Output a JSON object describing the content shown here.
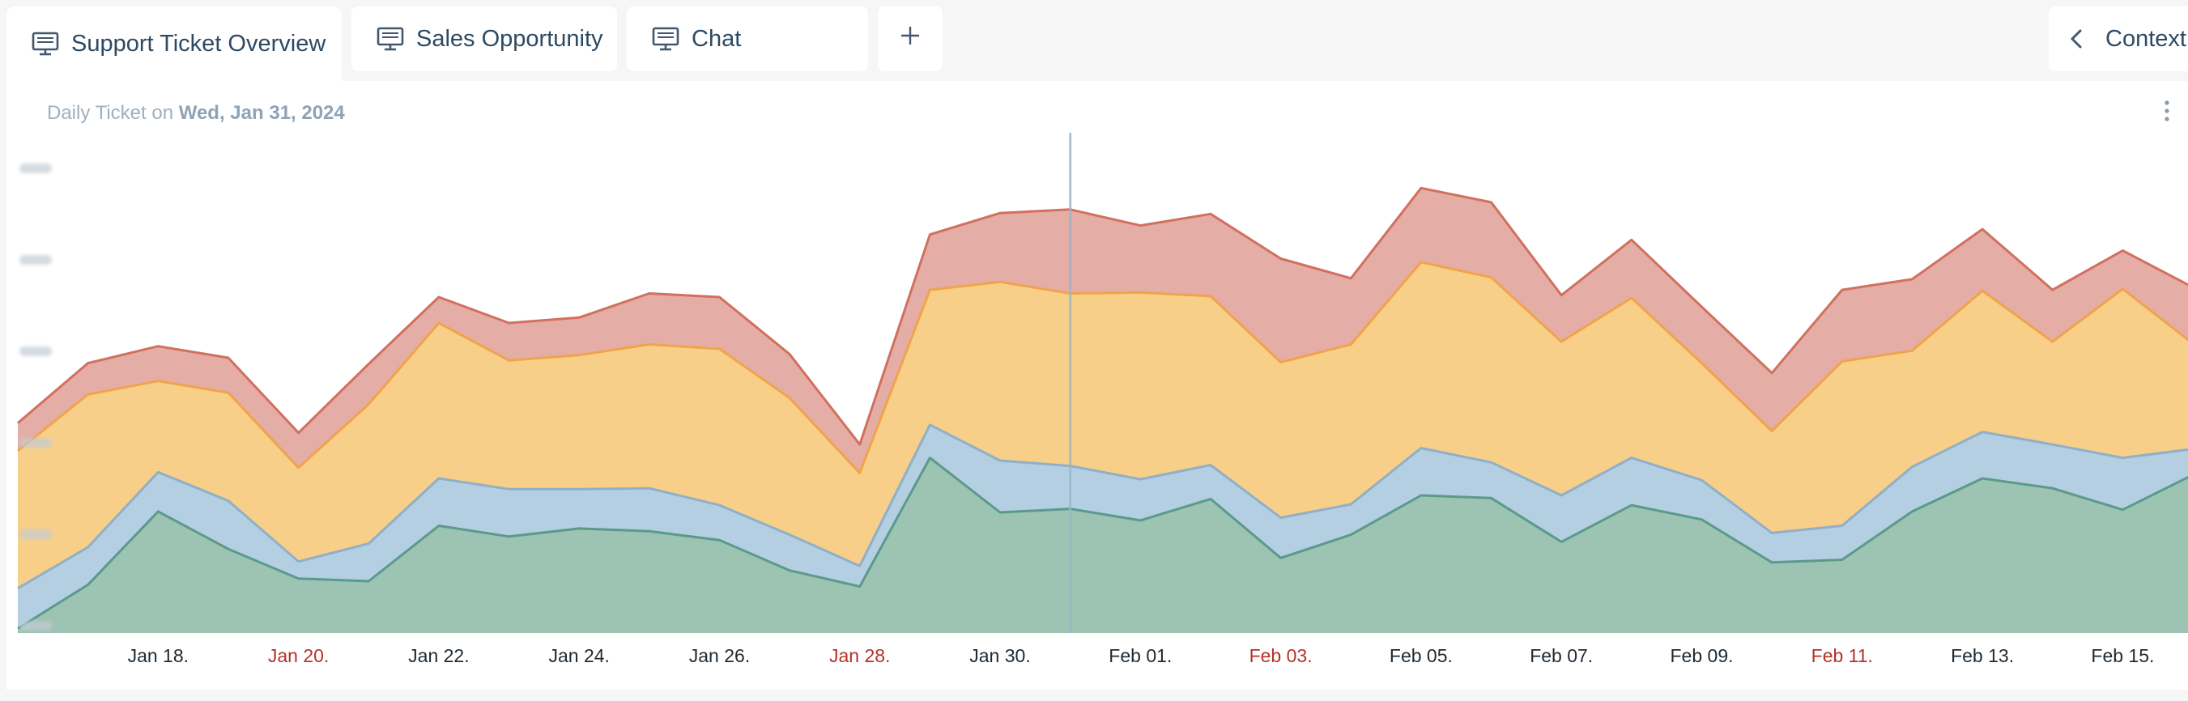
{
  "tabs": [
    {
      "label": "Support Ticket Overview",
      "active": true,
      "icon": "monitor-icon"
    },
    {
      "label": "Sales Opportunity",
      "active": false,
      "icon": "monitor-icon"
    },
    {
      "label": "Chat",
      "active": false,
      "icon": "monitor-icon"
    }
  ],
  "add_tab": {
    "icon": "plus-icon",
    "label": "+"
  },
  "context_button": {
    "label": "Context",
    "icon": "chevron-left-icon"
  },
  "chart_header": {
    "prefix": "Daily Ticket on",
    "date": "Wed, Jan 31, 2024"
  },
  "colors": {
    "series_1_fill": "#9dc3b2",
    "series_1_line": "#5b9a8b",
    "series_2_fill": "#b4cfe2",
    "series_2_line": "#8fb0c8",
    "series_3_fill": "#f7cf89",
    "series_3_line": "#f0a44a",
    "series_4_fill": "#e4ada6",
    "series_4_line": "#d2705f",
    "weekend_label": "#b4322a",
    "crosshair": "#9ab5c8"
  },
  "chart_data": {
    "type": "area",
    "stacked": true,
    "x": [
      "Jan 16",
      "Jan 17",
      "Jan 18",
      "Jan 19",
      "Jan 20",
      "Jan 21",
      "Jan 22",
      "Jan 23",
      "Jan 24",
      "Jan 25",
      "Jan 26",
      "Jan 27",
      "Jan 28",
      "Jan 29",
      "Jan 30",
      "Jan 31",
      "Feb 01",
      "Feb 02",
      "Feb 03",
      "Feb 04",
      "Feb 05",
      "Feb 06",
      "Feb 07",
      "Feb 08",
      "Feb 09",
      "Feb 10",
      "Feb 11",
      "Feb 12",
      "Feb 13",
      "Feb 14",
      "Feb 15",
      "Feb 16"
    ],
    "series": [
      {
        "values": [
          5,
          54,
          136,
          94,
          61,
          58,
          120,
          108,
          117,
          114,
          104,
          70,
          52,
          196,
          135,
          139,
          126,
          150,
          84,
          110,
          154,
          151,
          102,
          143,
          127,
          79,
          82,
          136,
          173,
          162,
          138,
          177
        ]
      },
      {
        "values": [
          45,
          42,
          44,
          54,
          19,
          42,
          53,
          53,
          44,
          48,
          39,
          40,
          23,
          37,
          58,
          48,
          46,
          38,
          45,
          34,
          53,
          40,
          52,
          53,
          44,
          33,
          38,
          50,
          52,
          49,
          58,
          29
        ]
      },
      {
        "values": [
          154,
          171,
          102,
          121,
          105,
          156,
          174,
          144,
          150,
          161,
          175,
          153,
          104,
          151,
          200,
          193,
          209,
          189,
          174,
          179,
          208,
          207,
          172,
          179,
          131,
          114,
          184,
          130,
          158,
          115,
          189,
          118
        ]
      },
      {
        "values": [
          31,
          35,
          39,
          39,
          39,
          45,
          29,
          42,
          42,
          57,
          58,
          49,
          32,
          62,
          77,
          94,
          75,
          92,
          116,
          74,
          83,
          84,
          52,
          65,
          63,
          65,
          80,
          80,
          69,
          58,
          43,
          63
        ]
      }
    ],
    "y_ticks": [
      "",
      "",
      "",
      "",
      "",
      "",
      ""
    ],
    "y_labels_blurred": true,
    "ylim": [
      0,
      520
    ],
    "x_tick_labels": [
      {
        "label": "Jan 18.",
        "weekend": false
      },
      {
        "label": "Jan 20.",
        "weekend": true
      },
      {
        "label": "Jan 22.",
        "weekend": false
      },
      {
        "label": "Jan 24.",
        "weekend": false
      },
      {
        "label": "Jan 26.",
        "weekend": false
      },
      {
        "label": "Jan 28.",
        "weekend": true
      },
      {
        "label": "Jan 30.",
        "weekend": false
      },
      {
        "label": "Feb 01.",
        "weekend": false
      },
      {
        "label": "Feb 03.",
        "weekend": true
      },
      {
        "label": "Feb 05.",
        "weekend": false
      },
      {
        "label": "Feb 07.",
        "weekend": false
      },
      {
        "label": "Feb 09.",
        "weekend": false
      },
      {
        "label": "Feb 11.",
        "weekend": true
      },
      {
        "label": "Feb 13.",
        "weekend": false
      },
      {
        "label": "Feb 15.",
        "weekend": false
      }
    ],
    "crosshair_at": "Jan 31",
    "grid": false,
    "legend": "none"
  }
}
